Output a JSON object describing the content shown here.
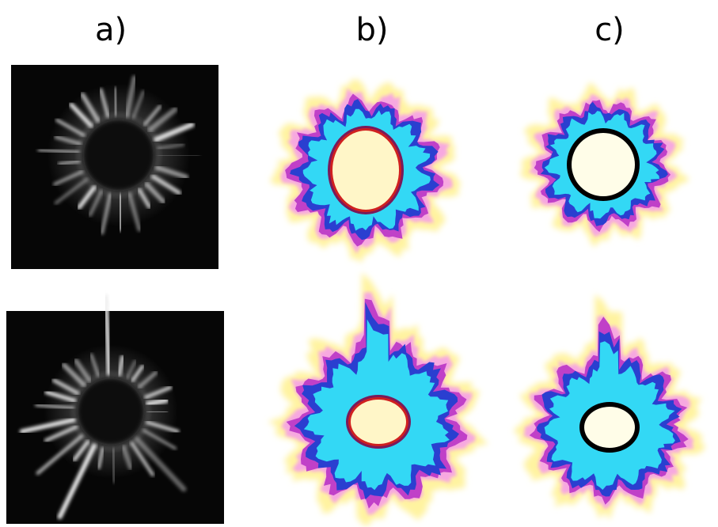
{
  "labels": [
    "a)",
    "b)",
    "c)"
  ]
}
